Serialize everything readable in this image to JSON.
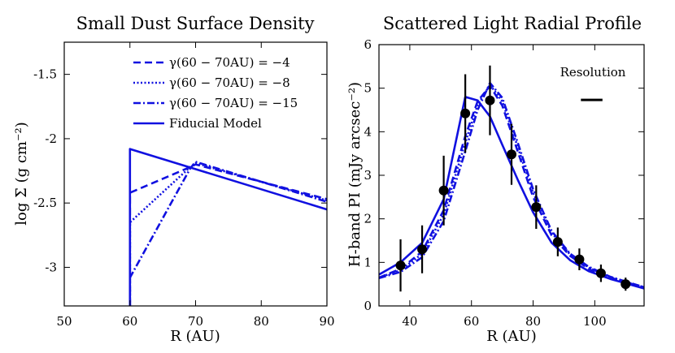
{
  "colors": {
    "series": "#1010e0",
    "markers": "#000000",
    "text": "#000000"
  },
  "chart_data": [
    {
      "type": "line",
      "title": "Small Dust Surface Density",
      "xlabel": "R (AU)",
      "ylabel": "log Σ (g cm⁻²)",
      "xlim": [
        50,
        90
      ],
      "ylim": [
        -3.3,
        -1.25
      ],
      "xticks": [
        {
          "v": 50,
          "label": "50"
        },
        {
          "v": 60,
          "label": "60"
        },
        {
          "v": 70,
          "label": "70"
        },
        {
          "v": 80,
          "label": "80"
        },
        {
          "v": 90,
          "label": "90"
        }
      ],
      "yticks": [
        {
          "v": -3,
          "label": "-3"
        },
        {
          "v": -2.5,
          "label": "-2.5"
        },
        {
          "v": -2,
          "label": "-2"
        },
        {
          "v": -1.5,
          "label": "-1.5"
        }
      ],
      "legend_position": "top-right",
      "series": [
        {
          "name": "γ(60 − 70AU) = −4",
          "style": "dashed",
          "x": [
            60,
            60,
            69.2,
            70,
            90
          ],
          "y": [
            -3.3,
            -2.42,
            -2.22,
            -2.2,
            -2.47
          ]
        },
        {
          "name": "γ(60 − 70AU) = −8",
          "style": "dotted",
          "x": [
            60,
            60,
            69.2,
            70,
            90
          ],
          "y": [
            -3.3,
            -2.65,
            -2.22,
            -2.19,
            -2.48
          ]
        },
        {
          "name": "γ(60 − 70AU) = −15",
          "style": "dashdot",
          "x": [
            60,
            60,
            69.2,
            70,
            90
          ],
          "y": [
            -3.3,
            -3.08,
            -2.23,
            -2.18,
            -2.49
          ]
        },
        {
          "name": "Fiducial Model",
          "style": "solid",
          "x": [
            60,
            60,
            90
          ],
          "y": [
            -3.3,
            -2.08,
            -2.55
          ]
        }
      ]
    },
    {
      "type": "line",
      "title": "Scattered Light Radial Profile",
      "xlabel": "R (AU)",
      "ylabel": "H-band PI (mJy arcsec⁻²)",
      "xlim": [
        30,
        116
      ],
      "ylim": [
        0,
        6
      ],
      "xticks": [
        {
          "v": 40,
          "label": "40"
        },
        {
          "v": 60,
          "label": "60"
        },
        {
          "v": 80,
          "label": "80"
        },
        {
          "v": 100,
          "label": "100"
        }
      ],
      "yticks": [
        {
          "v": 0,
          "label": "0"
        },
        {
          "v": 1,
          "label": "1"
        },
        {
          "v": 2,
          "label": "2"
        },
        {
          "v": 3,
          "label": "3"
        },
        {
          "v": 4,
          "label": "4"
        },
        {
          "v": 5,
          "label": "5"
        },
        {
          "v": 6,
          "label": "6"
        }
      ],
      "annotation": "Resolution",
      "resolution_bar_au": [
        95.5,
        102.5
      ],
      "resolution_bar_y": 4.73,
      "series": [
        {
          "name": "Fiducial Model",
          "style": "solid",
          "x": [
            30,
            37,
            44,
            51,
            58,
            62,
            66,
            70,
            75,
            80,
            86,
            92,
            98,
            105,
            110,
            116
          ],
          "y": [
            0.72,
            1.0,
            1.45,
            2.45,
            4.8,
            4.72,
            4.35,
            3.7,
            2.9,
            2.15,
            1.45,
            1.05,
            0.8,
            0.62,
            0.52,
            0.4
          ]
        },
        {
          "name": "γ(60 − 70AU) = −4",
          "style": "dashed",
          "x": [
            30,
            37,
            44,
            51,
            58,
            62,
            66,
            70,
            75,
            80,
            86,
            92,
            98,
            105,
            110,
            116
          ],
          "y": [
            0.65,
            0.85,
            1.25,
            2.2,
            3.9,
            4.7,
            5.05,
            4.6,
            3.55,
            2.5,
            1.62,
            1.15,
            0.85,
            0.65,
            0.55,
            0.42
          ]
        },
        {
          "name": "γ(60 − 70AU) = −8",
          "style": "dotted",
          "x": [
            30,
            37,
            44,
            51,
            58,
            62,
            66,
            70,
            75,
            80,
            86,
            92,
            98,
            105,
            110,
            116
          ],
          "y": [
            0.65,
            0.82,
            1.2,
            2.1,
            3.75,
            4.62,
            5.08,
            4.7,
            3.65,
            2.6,
            1.68,
            1.18,
            0.88,
            0.66,
            0.55,
            0.43
          ]
        },
        {
          "name": "γ(60 − 70AU) = −15",
          "style": "dashdot",
          "x": [
            30,
            37,
            44,
            51,
            58,
            62,
            66,
            70,
            75,
            80,
            86,
            92,
            98,
            105,
            110,
            116
          ],
          "y": [
            0.64,
            0.78,
            1.12,
            1.95,
            3.55,
            4.5,
            5.12,
            4.78,
            3.75,
            2.68,
            1.72,
            1.2,
            0.9,
            0.67,
            0.56,
            0.43
          ]
        }
      ],
      "observations": {
        "x": [
          37,
          44,
          51,
          58,
          66,
          73,
          81,
          88,
          95,
          102,
          110
        ],
        "y": [
          0.93,
          1.3,
          2.65,
          4.42,
          4.72,
          3.48,
          2.27,
          1.47,
          1.07,
          0.75,
          0.5
        ],
        "err": [
          0.6,
          0.55,
          0.8,
          0.9,
          0.8,
          0.7,
          0.5,
          0.33,
          0.25,
          0.2,
          0.15
        ]
      }
    }
  ]
}
